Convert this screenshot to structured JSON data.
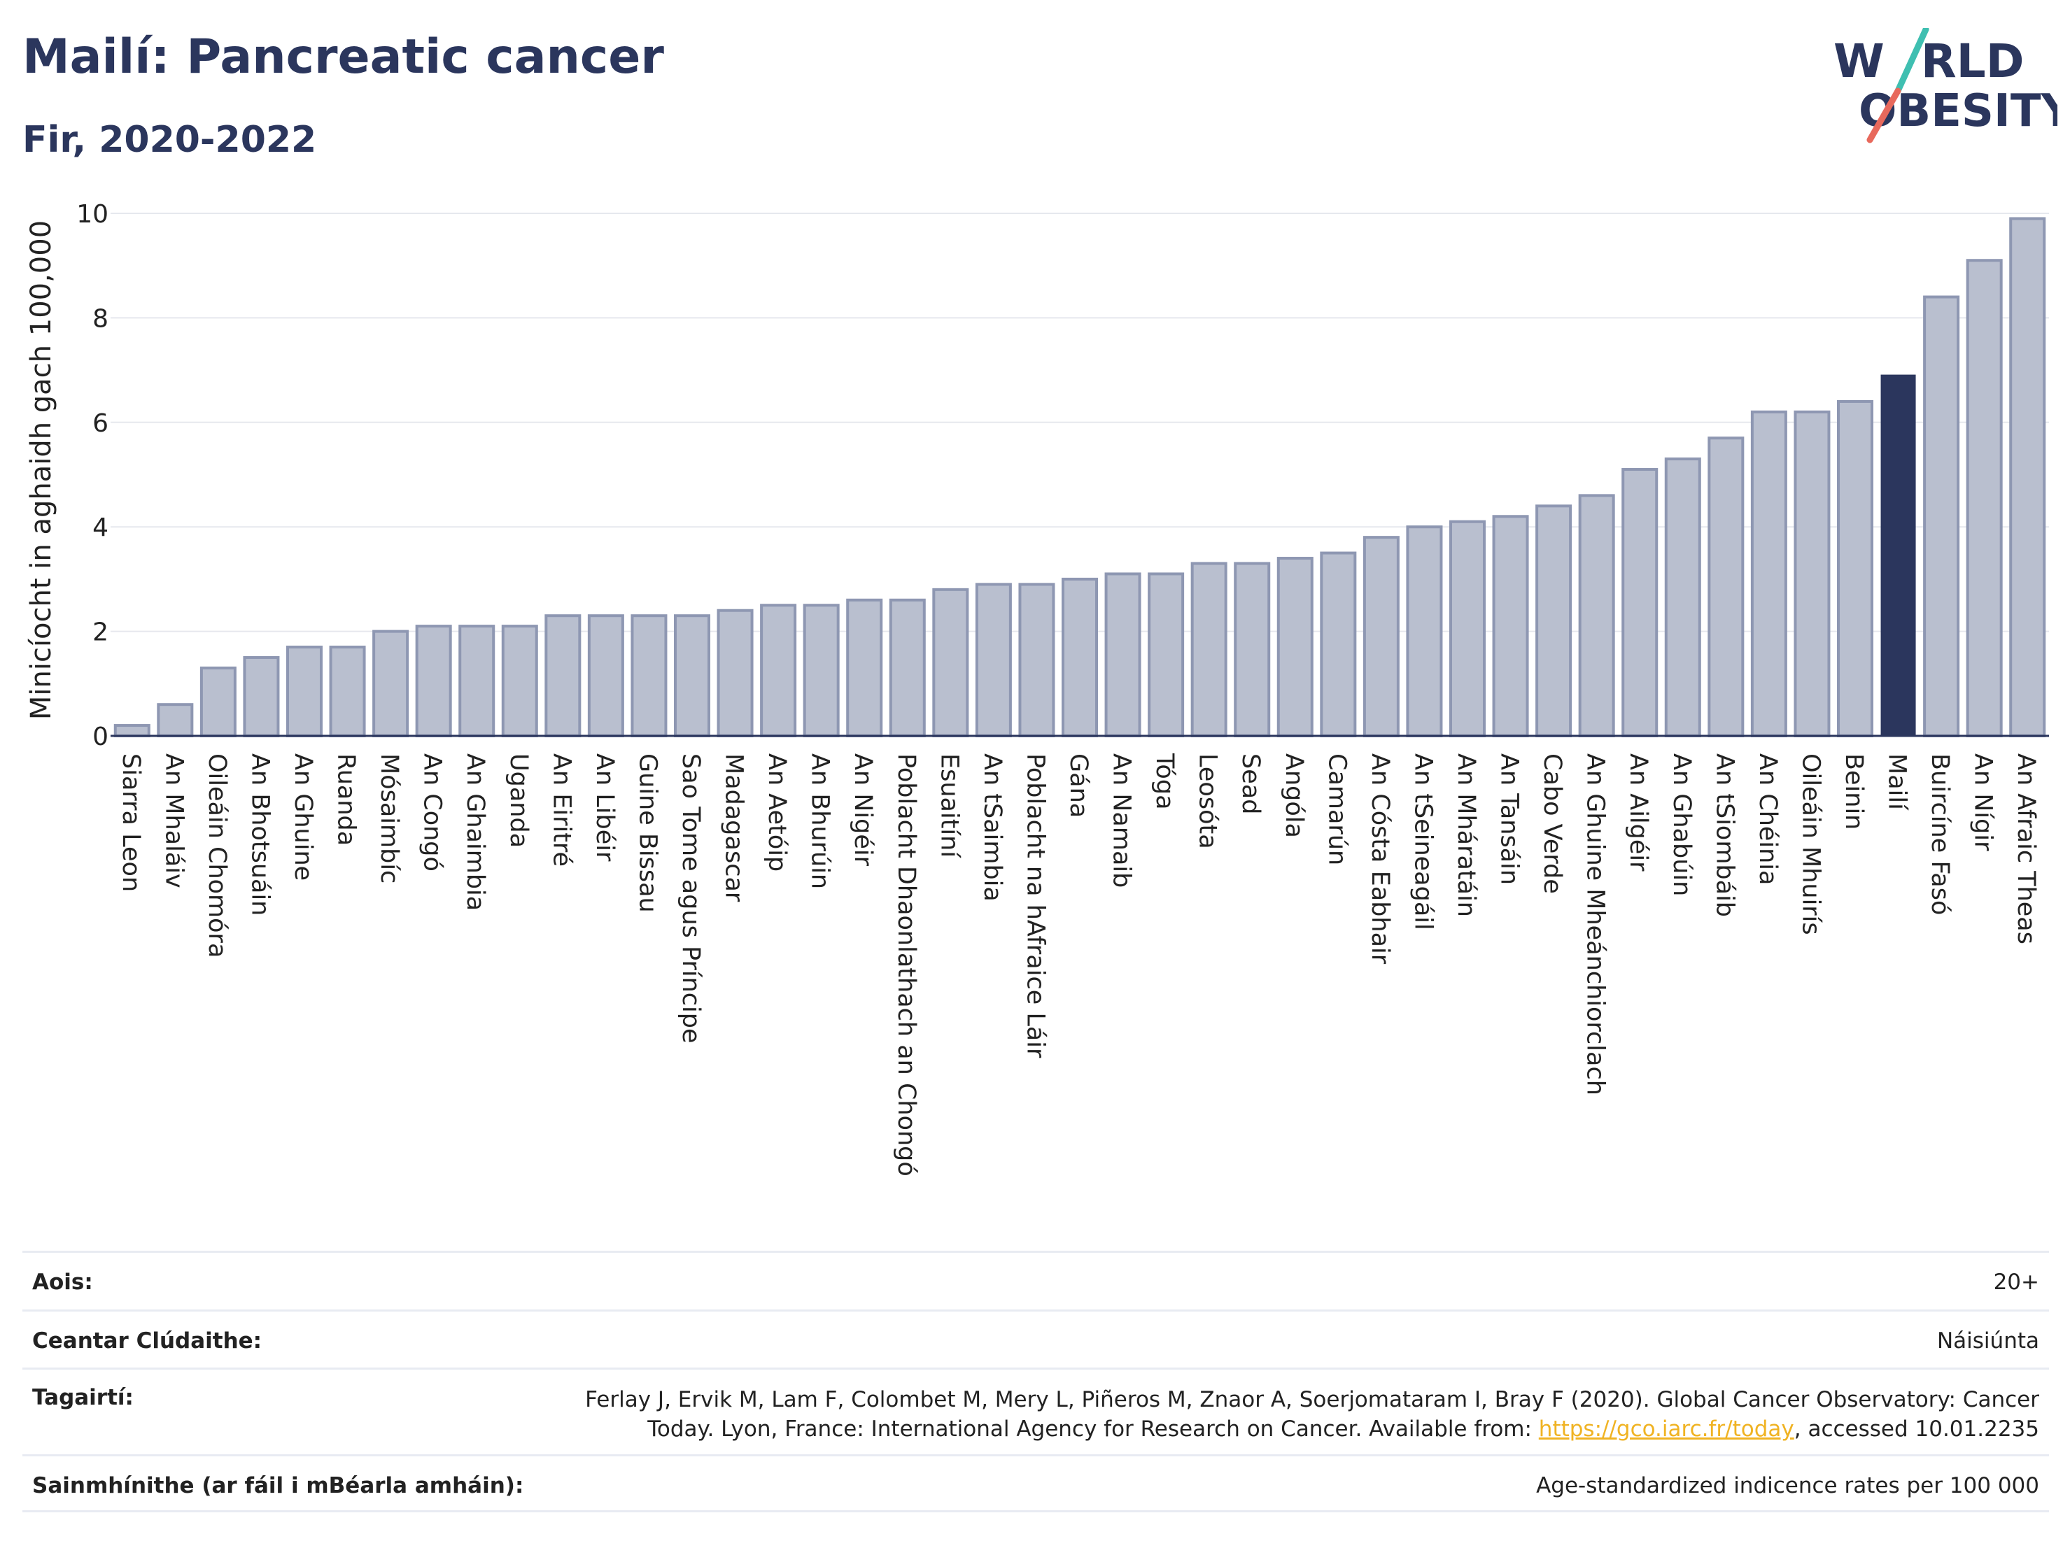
{
  "header": {
    "title": "Mailí: Pancreatic cancer",
    "subtitle": "Fir, 2020-2022"
  },
  "logo": {
    "line1": "W RLD",
    "line1_a": "W",
    "line1_b": "RLD",
    "line2": "OBESITY",
    "accent_color": "#e8695c",
    "accent_color2": "#3fbfb1"
  },
  "colors": {
    "bar": "#b9bfcf",
    "bar_edge": "#8e97b2",
    "highlight": "#2b365d",
    "text": "#2b365d"
  },
  "chart_data": {
    "type": "bar",
    "ylabel": "Minicíocht in aghaidh gach 100,000",
    "ylim": [
      0,
      10
    ],
    "yticks": [
      0,
      2,
      4,
      6,
      8,
      10
    ],
    "highlight": "Mailí",
    "categories": [
      "Siarra Leon",
      "An Mhaláiv",
      "Oileáin Chomóra",
      "An Bhotsuáin",
      "An Ghuine",
      "Ruanda",
      "Mósaimbíc",
      "An Congó",
      "An Ghaimbia",
      "Uganda",
      "An Eiritré",
      "An Libéir",
      "Guine Bissau",
      "Sao Tome agus Príncipe",
      "Madagascar",
      "An Aetóip",
      "An Bhurúin",
      "An Nigéir",
      "Poblacht Dhaonlathach an Chongó",
      "Esuaitíní",
      "An tSaimbia",
      "Poblacht na hAfraice Láir",
      "Gána",
      "An Namaib",
      "Tóga",
      "Leosóta",
      "Sead",
      "Angóla",
      "Camarún",
      "An Cósta Eabhair",
      "An tSeineagáil",
      "An Mháratáin",
      "An Tansáin",
      "Cabo Verde",
      "An Ghuine Mheánchiorclach",
      "An Ailgéir",
      "An Ghabúin",
      "An tSiombáib",
      "An Chéinia",
      "Oileáin Mhuirís",
      "Beinin",
      "Mailí",
      "Buircíne Fasó",
      "An Nígir",
      "An Afraic Theas"
    ],
    "values": [
      0.2,
      0.6,
      1.3,
      1.5,
      1.7,
      1.7,
      2.0,
      2.1,
      2.1,
      2.1,
      2.3,
      2.3,
      2.3,
      2.3,
      2.4,
      2.5,
      2.5,
      2.6,
      2.6,
      2.8,
      2.9,
      2.9,
      3.0,
      3.1,
      3.1,
      3.3,
      3.3,
      3.4,
      3.5,
      3.8,
      4.0,
      4.1,
      4.2,
      4.4,
      4.6,
      5.1,
      5.3,
      5.7,
      6.2,
      6.2,
      6.4,
      6.9,
      8.4,
      9.1,
      9.9
    ]
  },
  "info": {
    "age_label": "Aois:",
    "age_value": "20+",
    "coverage_label": "Ceantar Clúdaithe:",
    "coverage_value": "Náisiúnta",
    "references_label": "Tagairtí:",
    "references_line1": "Ferlay J, Ervik M, Lam F, Colombet M, Mery L, Piñeros M, Znaor A, Soerjomataram I, Bray F (2020). Global Cancer Observatory: Cancer",
    "references_line2a": "Today. Lyon, France: International Agency for Research on Cancer. Available from: ",
    "references_link": "https://gco.iarc.fr/today",
    "references_line2b": ", accessed 10.01.2235",
    "definitions_label": "Sainmhínithe (ar fáil i mBéarla amháin):",
    "definitions_value": "Age-standardized indicence rates per 100 000"
  }
}
